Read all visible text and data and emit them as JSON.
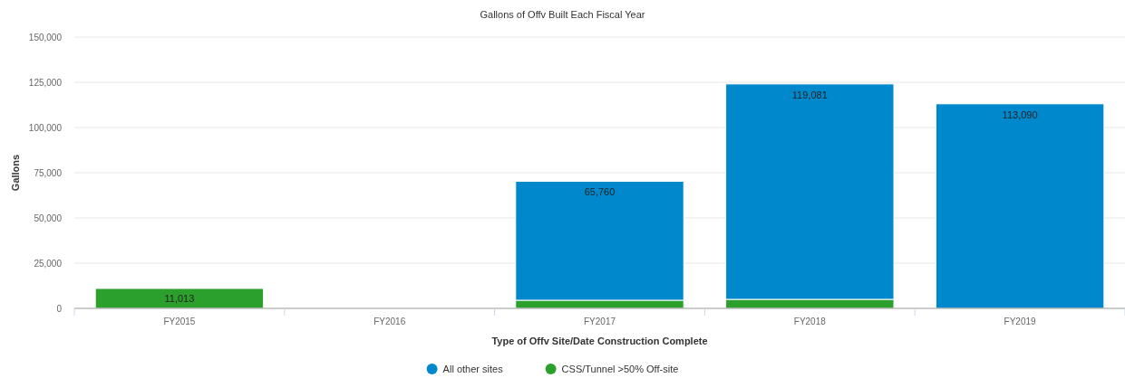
{
  "chart_data": {
    "type": "bar",
    "title": "Gallons of Offv Built Each Fiscal Year",
    "xlabel": "Type of Offv Site/Date Construction Complete",
    "ylabel": "Gallons",
    "categories": [
      "FY2015",
      "FY2016",
      "FY2017",
      "FY2018",
      "FY2019"
    ],
    "stacked": true,
    "series": [
      {
        "name": "CSS/Tunnel >50% Off-site",
        "color": "#2ca02c",
        "values": [
          11013,
          null,
          4500,
          5000,
          null
        ],
        "value_labels": [
          "11,013",
          null,
          null,
          null,
          null
        ]
      },
      {
        "name": "All other sites",
        "color": "#0088cc",
        "values": [
          null,
          null,
          65760,
          119081,
          113090
        ],
        "value_labels": [
          null,
          null,
          "65,760",
          "119,081",
          "113,090"
        ]
      }
    ],
    "ylim": [
      0,
      150000
    ],
    "yticks": [
      {
        "value": 0,
        "label": "0"
      },
      {
        "value": 25000,
        "label": "25,000"
      },
      {
        "value": 50000,
        "label": "50,000"
      },
      {
        "value": 75000,
        "label": "75,000"
      },
      {
        "value": 100000,
        "label": "100,000"
      },
      {
        "value": 125000,
        "label": "125,000"
      },
      {
        "value": 150000,
        "label": "150,000"
      }
    ],
    "grid": "y",
    "legend": "bottom"
  }
}
